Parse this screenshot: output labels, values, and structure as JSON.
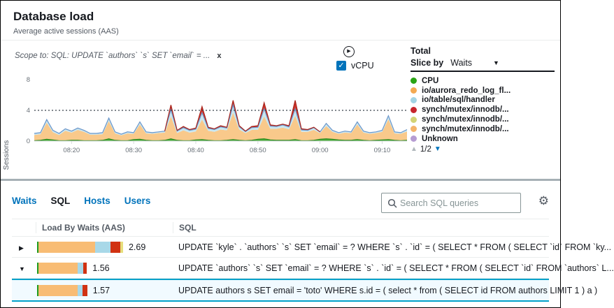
{
  "header": {
    "title": "Database load",
    "subtitle": "Average active sessions (AAS)"
  },
  "chart_section": {
    "scope_label": "Scope to: SQL: UPDATE `authors` `s` SET `email` = ...",
    "scope_close": "x",
    "vcpu_label": "vCPU",
    "vcpu_checked": true,
    "legend": {
      "total_label": "Total",
      "slice_by_label": "Slice by",
      "slice_by_value": "Waits",
      "items": [
        {
          "label": "CPU",
          "color": "#2aa415"
        },
        {
          "label": "io/aurora_redo_log_fl...",
          "color": "#f3a952"
        },
        {
          "label": "io/table/sql/handler",
          "color": "#a2d4e4"
        },
        {
          "label": "synch/mutex/innodb/...",
          "color": "#c7252c"
        },
        {
          "label": "synch/mutex/innodb/...",
          "color": "#d3d375"
        },
        {
          "label": "synch/mutex/innodb/...",
          "color": "#f4b36a"
        },
        {
          "label": "Unknown",
          "color": "#b69cd2"
        }
      ],
      "pagination": "1/2"
    }
  },
  "chart_data": {
    "type": "area",
    "stacked": true,
    "title": "Database load",
    "xlabel": "",
    "ylabel": "Sessions",
    "ylim": [
      0,
      8
    ],
    "yticks": [
      8,
      4,
      0
    ],
    "grid": false,
    "legend_position": "right",
    "vcpu_line_y": 4,
    "x_tick_indices": [
      6,
      16,
      26,
      36,
      46,
      56
    ],
    "x_tick_labels": [
      "08:20",
      "08:30",
      "08:40",
      "08:50",
      "09:00",
      "09:10"
    ],
    "series": [
      {
        "name": "CPU",
        "fill": "#45a935",
        "stroke": "#2d8a20",
        "stroke_min": -1,
        "values": [
          0.05,
          0.1,
          0.25,
          0.15,
          0.05,
          0.05,
          0.1,
          0.1,
          0.05,
          0.05,
          0.05,
          0.1,
          0.3,
          0.1,
          0.05,
          0.05,
          0.2,
          0.25,
          0.1,
          0.05,
          0.05,
          0.1,
          0.3,
          0.1,
          0.05,
          0.05,
          0.15,
          0.2,
          0.1,
          0.05,
          0.05,
          0.1,
          0.2,
          0.1,
          0.05,
          0.1,
          0.25,
          0.3,
          0.15,
          0.1,
          0.1,
          0.1,
          0.2,
          0.05,
          0.05,
          0.1,
          0.25,
          0.3,
          0.25,
          0.15,
          0.1,
          0.1,
          0.2,
          0.1,
          0.05,
          0.1,
          0.15,
          0.2,
          0.1,
          0.05,
          0.1
        ]
      },
      {
        "name": "io/aurora_redo_log_fl...",
        "fill": "#f9c98b",
        "stroke": null,
        "stroke_min": -1,
        "values": [
          0.75,
          0.8,
          2.15,
          1.0,
          0.75,
          1.3,
          1.0,
          1.35,
          1.15,
          0.8,
          0.8,
          0.8,
          2.3,
          0.9,
          0.7,
          0.95,
          0.75,
          1.9,
          0.9,
          0.9,
          1.0,
          1.0,
          2.9,
          0.95,
          1.35,
          1.05,
          1.1,
          2.6,
          1.25,
          1.15,
          1.45,
          1.3,
          3.5,
          1.4,
          1.0,
          1.35,
          1.2,
          2.9,
          1.45,
          1.5,
          1.65,
          1.45,
          3.1,
          1.15,
          1.15,
          1.35,
          0.8,
          1.65,
          0.95,
          0.8,
          1.0,
          0.95,
          1.95,
          1.0,
          0.9,
          0.95,
          1.05,
          2.65,
          0.9,
          0.9,
          1.15
        ]
      },
      {
        "name": "io/table/sql/handler",
        "fill": "#c9e6f0",
        "stroke": "#6b96c9",
        "stroke_min": -1,
        "values": [
          0.2,
          0.2,
          0.4,
          0.25,
          0.2,
          0.25,
          0.2,
          0.25,
          0.2,
          0.15,
          0.15,
          0.2,
          0.4,
          0.2,
          0.15,
          0.2,
          0.15,
          0.35,
          0.2,
          0.15,
          0.15,
          0.2,
          0.9,
          0.25,
          0.35,
          0.3,
          0.3,
          0.9,
          0.3,
          0.3,
          0.35,
          0.3,
          1.0,
          0.35,
          0.2,
          0.3,
          0.35,
          1.0,
          0.35,
          0.3,
          0.35,
          0.3,
          0.9,
          0.25,
          0.2,
          0.3,
          0.15,
          0.35,
          0.2,
          0.15,
          0.2,
          0.15,
          0.35,
          0.2,
          0.15,
          0.15,
          0.2,
          0.45,
          0.2,
          0.15,
          0.25
        ]
      },
      {
        "name": "synch/mutex/innodb/...",
        "fill": "#d0342c",
        "stroke": "#aa241b",
        "stroke_min": 0.01,
        "values": [
          0,
          0,
          0,
          0,
          0,
          0,
          0,
          0,
          0,
          0,
          0,
          0,
          0,
          0,
          0,
          0,
          0,
          0,
          0,
          0,
          0,
          0,
          0.6,
          0.1,
          0.15,
          0.1,
          0.15,
          0.8,
          0.15,
          0.1,
          0.15,
          0.1,
          0.6,
          0.15,
          0.05,
          0.15,
          0.2,
          0.8,
          0.15,
          0.1,
          0.1,
          0.15,
          1.1,
          0.15,
          0.1,
          0.05,
          0,
          0,
          0,
          0,
          0,
          0,
          0,
          0,
          0,
          0,
          0,
          0,
          0,
          0,
          0
        ]
      }
    ]
  },
  "table_section": {
    "tabs": [
      {
        "label": "Waits",
        "active": false
      },
      {
        "label": "SQL",
        "active": true
      },
      {
        "label": "Hosts",
        "active": false
      },
      {
        "label": "Users",
        "active": false
      }
    ],
    "search_placeholder": "Search SQL queries",
    "columns": {
      "load": "Load By Waits (AAS)",
      "sql": "SQL"
    },
    "rows": [
      {
        "expander": "collapsed",
        "indent": false,
        "muted": false,
        "selected": false,
        "value": "2.69",
        "value_num": 2.69,
        "segments": [
          {
            "color": "#1d9b1d",
            "frac": 0.02
          },
          {
            "color": "#f8bc74",
            "frac": 0.655
          },
          {
            "color": "#a8d8e8",
            "frac": 0.18
          },
          {
            "color": "#d13212",
            "frac": 0.115
          },
          {
            "color": "#e6de7c",
            "frac": 0.03
          }
        ],
        "sql": "UPDATE `kyle` . `authors` `s` SET `email` = ? WHERE `s` . `id` = ( SELECT * FROM ( SELECT `id` FROM `ky..."
      },
      {
        "expander": "expanded",
        "indent": false,
        "muted": false,
        "selected": false,
        "value": "1.56",
        "value_num": 1.56,
        "segments": [
          {
            "color": "#1d9b1d",
            "frac": 0.03
          },
          {
            "color": "#f8bc74",
            "frac": 0.79
          },
          {
            "color": "#a8d8e8",
            "frac": 0.1
          },
          {
            "color": "#d13212",
            "frac": 0.08
          }
        ],
        "sql": "UPDATE `authors` `s` SET `email` = ? WHERE `s` . `id` = ( SELECT * FROM ( SELECT `id` FROM `authors` L..."
      },
      {
        "expander": "expanded",
        "indent": true,
        "muted": true,
        "selected": true,
        "value": "1.57",
        "value_num": 1.57,
        "segments": [
          {
            "color": "#1d9b1d",
            "frac": 0.03
          },
          {
            "color": "#f8bc74",
            "frac": 0.78
          },
          {
            "color": "#a8d8e8",
            "frac": 0.1
          },
          {
            "color": "#d13212",
            "frac": 0.09
          }
        ],
        "sql": "UPDATE authors s SET email = 'toto' WHERE s.id = ( select * from ( SELECT id FROM authors LIMIT 1 ) a )"
      }
    ]
  }
}
